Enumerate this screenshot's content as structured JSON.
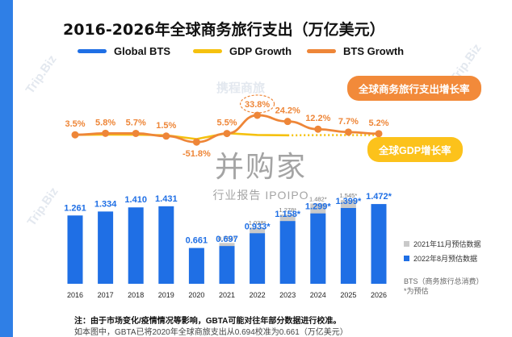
{
  "title": "2016-2026年全球商务旅行支出（万亿美元）",
  "legend": {
    "global_bts": "Global BTS",
    "gdp_growth": "GDP Growth",
    "bts_growth": "BTS Growth"
  },
  "callouts": {
    "bts_growth_label": "全球商务旅行支出增长率",
    "gdp_growth_label": "全球GDP增长率"
  },
  "secondary_legend": {
    "nov2021": "2021年11月预估数据",
    "aug2022": "2022年8月预估数据"
  },
  "bts_note": [
    "BTS（商务旅行总消费）",
    "*为预估"
  ],
  "watermarks": {
    "brand_main": "并购家",
    "brand_sub": "行业报告 IPOIPO",
    "corner": "Trip.Biz",
    "corner_cn": "携程商旅"
  },
  "footnote_1": "注：由于市场变化/疫情情况等影响，GBTA可能对往年部分数据进行校准。",
  "footnote_2": "如本图中，GBTA已将2020年全球商旅支出从0.694校准为0.661（万亿美元）",
  "colors": {
    "bar_blue": "#1f6fe5",
    "bar_grey": "#c9c9c9",
    "bts_growth": "#ee8638",
    "gdp_growth": "#f5c10f",
    "accent_bar": "#2f7fe6"
  },
  "chart_data": {
    "type": "bar",
    "categories": [
      "2016",
      "2017",
      "2018",
      "2019",
      "2020",
      "2021",
      "2022",
      "2023",
      "2024",
      "2025",
      "2026"
    ],
    "series": [
      {
        "name": "2022年8月预估数据",
        "values": [
          1.261,
          1.334,
          1.41,
          1.431,
          0.661,
          0.697,
          0.933,
          1.158,
          1.299,
          1.399,
          1.472
        ],
        "labels": [
          "1.261",
          "1.334",
          "1.410",
          "1.431",
          "0.661",
          "0.697",
          "0.933*",
          "1.158*",
          "1.299*",
          "1.399*",
          "1.472*"
        ]
      },
      {
        "name": "2021年11月预估数据",
        "values": [
          null,
          null,
          null,
          null,
          null,
          0.754,
          1.038,
          1.278,
          1.482,
          1.545,
          null
        ],
        "labels": [
          "",
          "",
          "",
          "",
          "",
          "0.754*",
          "1.038*",
          "1.278*",
          "1.482*",
          "1.545*",
          ""
        ]
      }
    ],
    "lines": [
      {
        "name": "BTS Growth",
        "values": [
          3.5,
          5.8,
          5.7,
          1.5,
          -51.8,
          5.5,
          33.8,
          24.2,
          12.2,
          7.7,
          5.2
        ],
        "labels": [
          "3.5%",
          "5.8%",
          "5.7%",
          "1.5%",
          "-51.8%",
          "5.5%",
          "33.8%",
          "24.2%",
          "12.2%",
          "7.7%",
          "5.2%"
        ]
      },
      {
        "name": "GDP Growth",
        "values": [
          3.3,
          3.8,
          3.6,
          2.8,
          -3.1,
          6.0,
          3.2,
          2.7,
          3.0,
          3.0,
          3.0
        ]
      }
    ],
    "ylim": [
      0,
      1.6
    ],
    "xlabel": "",
    "ylabel": ""
  }
}
